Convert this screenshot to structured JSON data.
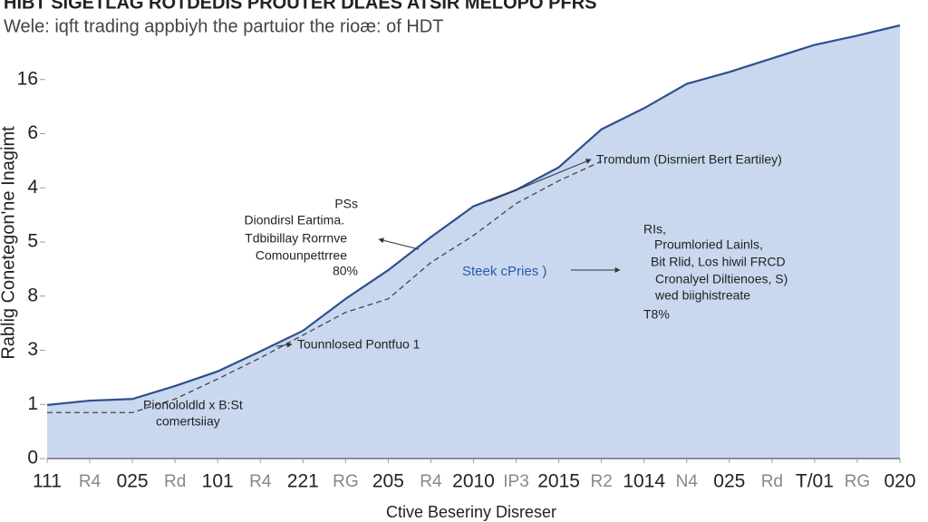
{
  "chart_data": {
    "type": "area",
    "title": "HIBT SIGETLAG ROTDEDIS PROUTER DLAES ATSIR MELOPO PFRS",
    "subtitle": "Wele: iqft trading appbiyh the partuior the rioæ: of HDT",
    "y_label": "Rablig Conetegon'ne Inagimt",
    "x_label": "Ctive Beseriny Disreser",
    "x": [
      0,
      1,
      2,
      3,
      4,
      5,
      6,
      7,
      8,
      9,
      10,
      11,
      12,
      13,
      14,
      15,
      16,
      17,
      18,
      19,
      20
    ],
    "xlim": [
      0,
      20
    ],
    "xticks": [
      {
        "value": 0,
        "label": "111"
      },
      {
        "value": 1,
        "label": "R4"
      },
      {
        "value": 2,
        "label": "025"
      },
      {
        "value": 3,
        "label": "Rd"
      },
      {
        "value": 4,
        "label": "101"
      },
      {
        "value": 5,
        "label": "R4"
      },
      {
        "value": 6,
        "label": "221"
      },
      {
        "value": 7,
        "label": "RG"
      },
      {
        "value": 8,
        "label": "205"
      },
      {
        "value": 9,
        "label": "R4"
      },
      {
        "value": 10,
        "label": "2010"
      },
      {
        "value": 11,
        "label": "IP3"
      },
      {
        "value": 12,
        "label": "2015"
      },
      {
        "value": 13,
        "label": "R2"
      },
      {
        "value": 14,
        "label": "1014"
      },
      {
        "value": 15,
        "label": "N4"
      },
      {
        "value": 16,
        "label": "025"
      },
      {
        "value": 17,
        "label": "Rd"
      },
      {
        "value": 18,
        "label": "T/01"
      },
      {
        "value": 19,
        "label": "RG"
      },
      {
        "value": 20,
        "label": "020"
      }
    ],
    "ylim": [
      0,
      8
    ],
    "yticks": [
      0,
      {
        "value": 1,
        "label": "1"
      },
      {
        "value": 2,
        "label": "3"
      },
      {
        "value": 3,
        "label": "8"
      },
      {
        "value": 4,
        "label": "5"
      },
      {
        "value": 5,
        "label": "4"
      },
      {
        "value": 6,
        "label": "6"
      },
      {
        "value": 7,
        "label": "16"
      }
    ],
    "series": [
      {
        "color": "#2f4f8f",
        "fill": "#c9d8ef",
        "style": "solid",
        "values": [
          0.99,
          1.07,
          1.1,
          1.34,
          1.61,
          1.98,
          2.36,
          2.95,
          3.48,
          4.09,
          4.66,
          4.96,
          5.38,
          6.08,
          6.47,
          6.92,
          7.14,
          7.39,
          7.64,
          7.81,
          8.0
        ]
      },
      {
        "color": "#444444",
        "style": "dashed",
        "values": [
          0.85,
          0.85,
          0.85,
          1.1,
          1.47,
          1.86,
          2.28,
          2.7,
          2.95,
          3.62,
          4.12,
          4.71,
          5.13,
          5.49,
          null,
          null,
          null,
          null,
          null,
          null,
          null
        ]
      }
    ],
    "annotations": [
      "Tromdum  (Disrniert Bert Eartiley)",
      "PSs",
      "Diondirsl Eartima.",
      "Tdbibillay Rorrnve",
      "Comounpettrree",
      "80%",
      "Steek cPries )",
      "RIs,",
      "Proumloried Lainls,",
      "Bit Rlid, Los hiwil FRCD",
      "Cronalyel Diltienoes, S)",
      "wed biighistreate",
      "T8%",
      "Tounnlosed Pontfuo 1",
      "Pionololdld x B:St",
      "comertsiiay"
    ]
  }
}
